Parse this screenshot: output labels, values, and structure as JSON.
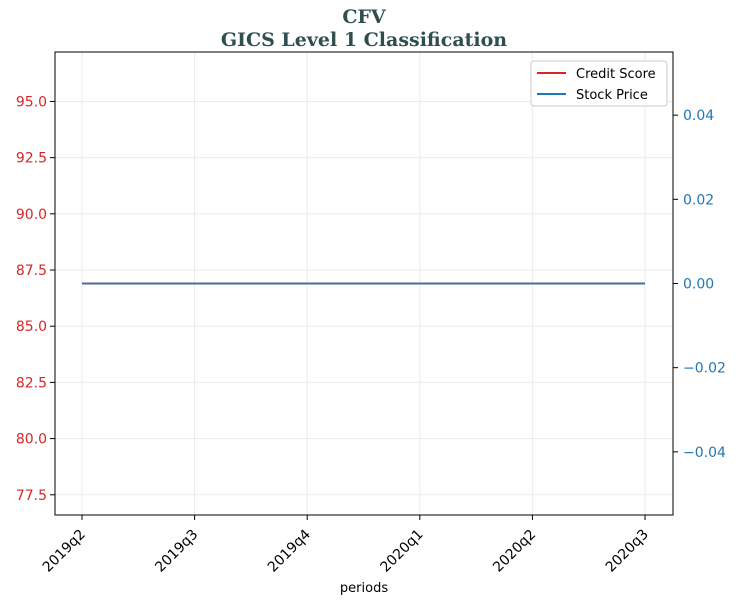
{
  "chart_data": {
    "type": "line",
    "title": "CFV",
    "subtitle": "GICS Level 1 Classification",
    "xlabel": "periods",
    "categories": [
      "2019q2",
      "2019q3",
      "2019q4",
      "2020q1",
      "2020q2",
      "2020q3"
    ],
    "left_axis": {
      "ylim": [
        76.6,
        97.2
      ],
      "ticks": [
        77.5,
        80.0,
        82.5,
        85.0,
        87.5,
        90.0,
        92.5,
        95.0
      ],
      "tick_labels": [
        "77.5",
        "80.0",
        "82.5",
        "85.0",
        "87.5",
        "90.0",
        "92.5",
        "95.0"
      ],
      "color": "#d62728"
    },
    "right_axis": {
      "ylim": [
        -0.055,
        0.055
      ],
      "ticks": [
        -0.04,
        -0.02,
        0.0,
        0.02,
        0.04
      ],
      "tick_labels": [
        "−0.04",
        "−0.02",
        "0.00",
        "0.02",
        "0.04"
      ],
      "color": "#1f77b4"
    },
    "series": [
      {
        "name": "Credit Score",
        "axis": "left",
        "color": "#d62728",
        "values": [
          86.9,
          86.9,
          86.9,
          86.9,
          86.9,
          86.9
        ]
      },
      {
        "name": "Stock Price",
        "axis": "right",
        "color": "#1f77b4",
        "values": [
          0,
          0,
          0,
          0,
          0,
          0
        ]
      }
    ],
    "grid": true,
    "legend": "top-right"
  }
}
